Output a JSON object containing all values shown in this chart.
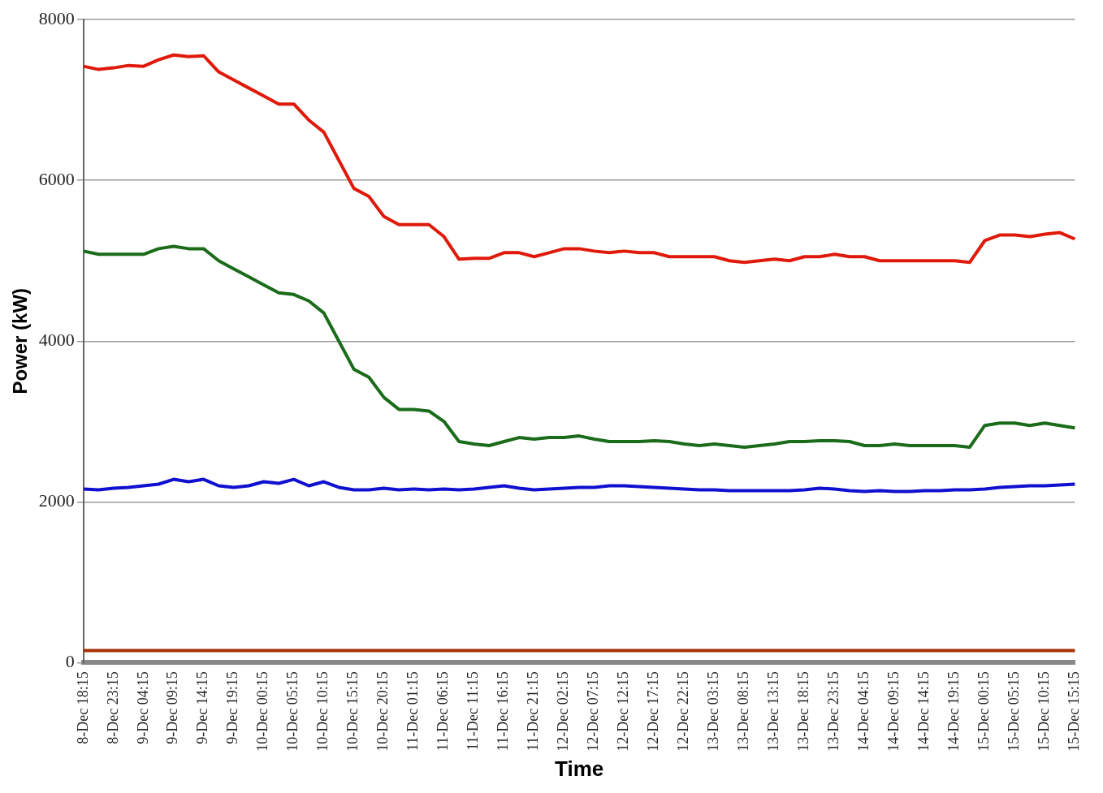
{
  "chart_data": {
    "type": "line",
    "xlabel": "Time",
    "ylabel": "Power (kW)",
    "categories": [
      "8-Dec 18:15",
      null,
      "8-Dec 23:15",
      null,
      "9-Dec 04:15",
      null,
      "9-Dec 09:15",
      null,
      "9-Dec 14:15",
      null,
      "9-Dec 19:15",
      null,
      "10-Dec 00:15",
      null,
      "10-Dec 05:15",
      null,
      "10-Dec 10:15",
      null,
      "10-Dec 15:15",
      null,
      "10-Dec 20:15",
      null,
      "11-Dec 01:15",
      null,
      "11-Dec 06:15",
      null,
      "11-Dec 11:15",
      null,
      "11-Dec 16:15",
      null,
      "11-Dec 21:15",
      null,
      "12-Dec 02:15",
      null,
      "12-Dec 07:15",
      null,
      "12-Dec 12:15",
      null,
      "12-Dec 17:15",
      null,
      "12-Dec 22:15",
      null,
      "13-Dec 03:15",
      null,
      "13-Dec 08:15",
      null,
      "13-Dec 13:15",
      null,
      "13-Dec 18:15",
      null,
      "13-Dec 23:15",
      null,
      "14-Dec 04:15",
      null,
      "14-Dec 09:15",
      null,
      "14-Dec 14:15",
      null,
      "14-Dec 19:15",
      null,
      "15-Dec 00:15",
      null,
      "15-Dec 05:15",
      null,
      "15-Dec 10:15",
      null,
      "15-Dec 15:15"
    ],
    "series": [
      {
        "color": "#e01a0a",
        "values": [
          7420,
          7380,
          7400,
          7430,
          7420,
          7500,
          7560,
          7540,
          7550,
          7350,
          7250,
          7150,
          7050,
          6950,
          6950,
          6750,
          6600,
          6250,
          5900,
          5800,
          5550,
          5450,
          5450,
          5450,
          5300,
          5020,
          5030,
          5030,
          5100,
          5100,
          5050,
          5100,
          5150,
          5150,
          5120,
          5100,
          5120,
          5100,
          5100,
          5050,
          5050,
          5050,
          5050,
          5000,
          4980,
          5000,
          5020,
          5000,
          5050,
          5050,
          5080,
          5050,
          5050,
          5000,
          5000,
          5000,
          5000,
          5000,
          5000,
          4980,
          5250,
          5320,
          5320,
          5300,
          5330,
          5350,
          5270
        ]
      },
      {
        "color": "#1a6b1a",
        "values": [
          5120,
          5080,
          5080,
          5080,
          5080,
          5150,
          5180,
          5150,
          5150,
          5000,
          4900,
          4800,
          4700,
          4600,
          4580,
          4500,
          4350,
          4000,
          3650,
          3550,
          3300,
          3150,
          3150,
          3130,
          3000,
          2750,
          2720,
          2700,
          2750,
          2800,
          2780,
          2800,
          2800,
          2820,
          2780,
          2750,
          2750,
          2750,
          2760,
          2750,
          2720,
          2700,
          2720,
          2700,
          2680,
          2700,
          2720,
          2750,
          2750,
          2760,
          2760,
          2750,
          2700,
          2700,
          2720,
          2700,
          2700,
          2700,
          2700,
          2680,
          2950,
          2980,
          2980,
          2950,
          2980,
          2950,
          2920
        ]
      },
      {
        "color": "#1010d0",
        "values": [
          2160,
          2150,
          2170,
          2180,
          2200,
          2220,
          2280,
          2250,
          2280,
          2200,
          2180,
          2200,
          2250,
          2230,
          2280,
          2200,
          2250,
          2180,
          2150,
          2150,
          2170,
          2150,
          2160,
          2150,
          2160,
          2150,
          2160,
          2180,
          2200,
          2170,
          2150,
          2160,
          2170,
          2180,
          2180,
          2200,
          2200,
          2190,
          2180,
          2170,
          2160,
          2150,
          2150,
          2140,
          2140,
          2140,
          2140,
          2140,
          2150,
          2170,
          2160,
          2140,
          2130,
          2140,
          2130,
          2130,
          2140,
          2140,
          2150,
          2150,
          2160,
          2180,
          2190,
          2200,
          2200,
          2210,
          2220
        ]
      },
      {
        "color": "#a63200",
        "values": [
          150,
          150,
          150,
          150,
          150,
          150,
          150,
          150,
          150,
          150,
          150,
          150,
          150,
          150,
          150,
          150,
          150,
          150,
          150,
          150,
          150,
          150,
          150,
          150,
          150,
          150,
          150,
          150,
          150,
          150,
          150,
          150,
          150,
          150,
          150,
          150,
          150,
          150,
          150,
          150,
          150,
          150,
          150,
          150,
          150,
          150,
          150,
          150,
          150,
          150,
          150,
          150,
          150,
          150,
          150,
          150,
          150,
          150,
          150,
          150,
          150,
          150,
          150,
          150,
          150,
          150,
          150
        ]
      }
    ],
    "ylim": [
      0,
      8000
    ],
    "yticks": [
      0,
      2000,
      4000,
      6000,
      8000
    ],
    "grid": "y",
    "legend": false,
    "marker": "none",
    "line_style": "solid"
  }
}
